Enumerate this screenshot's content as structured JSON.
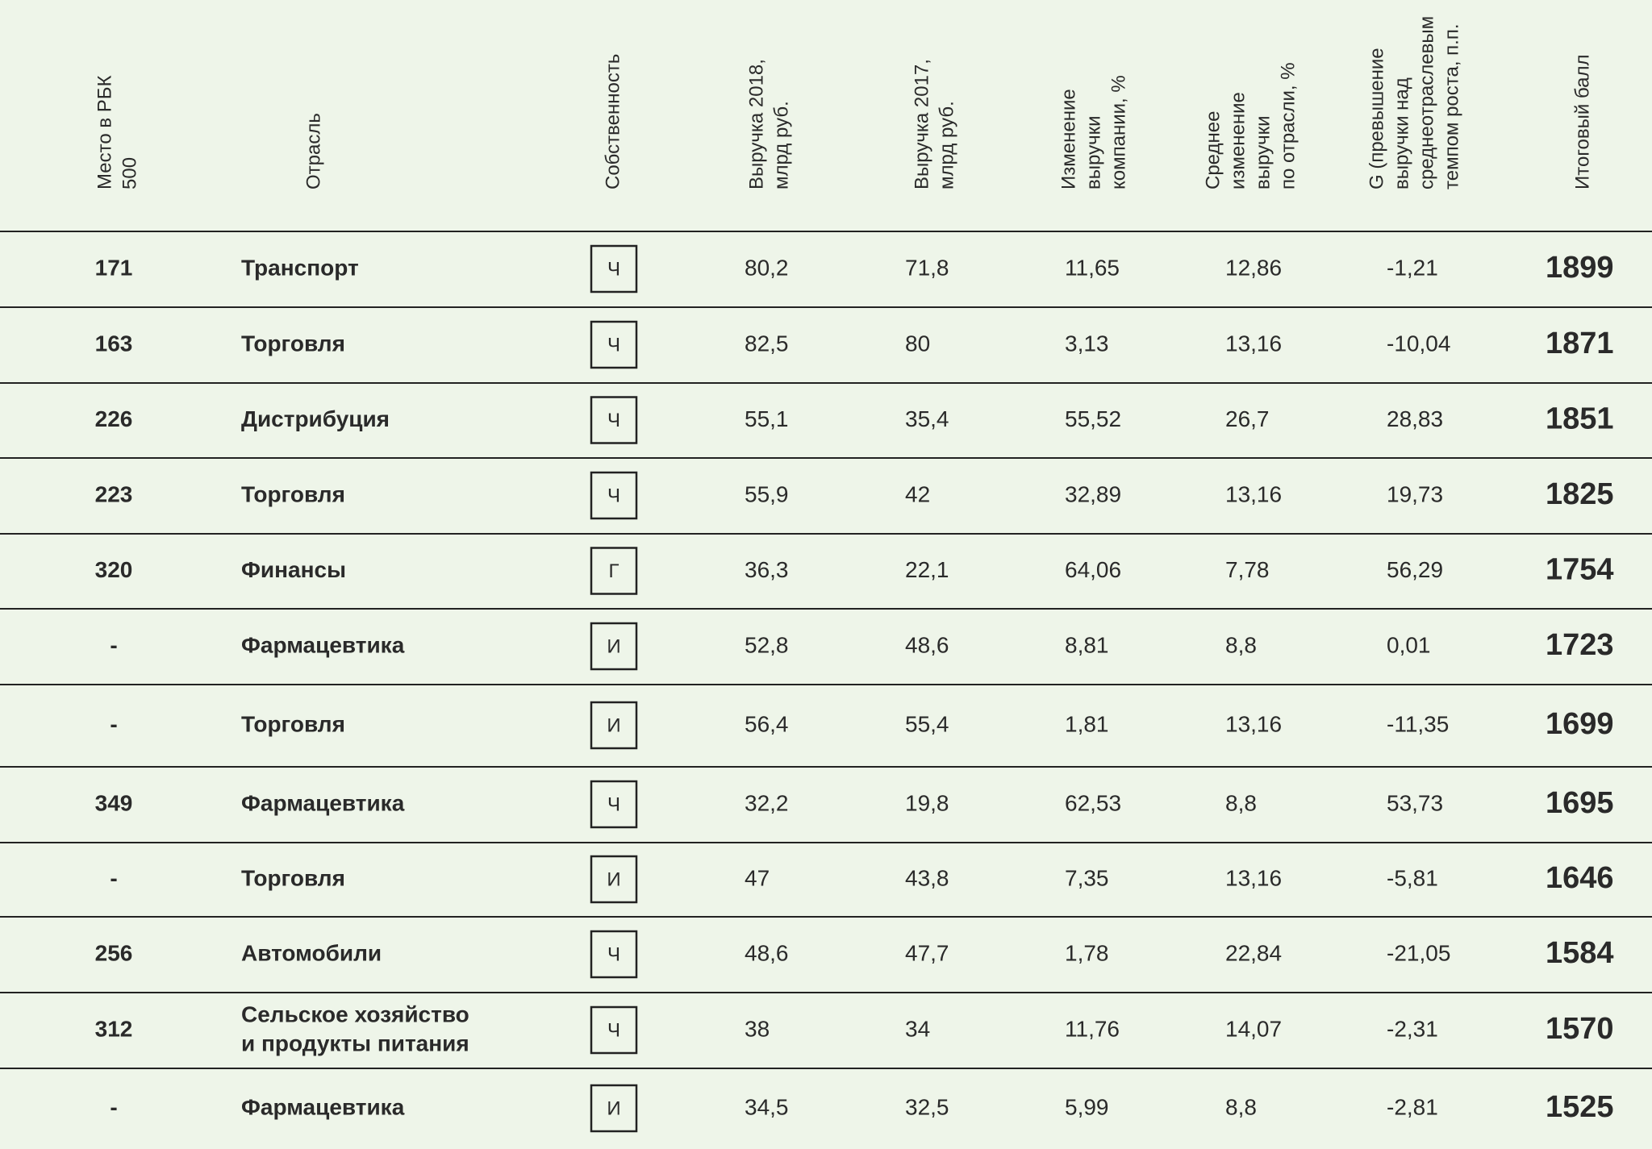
{
  "table": {
    "headers": [
      [
        "Место в РБК",
        "500"
      ],
      [
        "Отрасль"
      ],
      [
        "Собственность"
      ],
      [
        "Выручка 2018,",
        "млрд руб."
      ],
      [
        "Выручка 2017,",
        "млрд руб."
      ],
      [
        "Изменение",
        "выручки",
        "компании, %"
      ],
      [
        "Среднее",
        "изменение",
        "выручки",
        "по отрасли, %"
      ],
      [
        "G (превышение",
        "выручки над",
        "среднеотраслевым",
        "темпом роста, п.п."
      ],
      [
        "Итоговый балл"
      ]
    ],
    "rows": [
      [
        "171",
        "Транспорт",
        "Ч",
        "80,2",
        "71,8",
        "11,65",
        "12,86",
        "-1,21",
        "1899"
      ],
      [
        "163",
        "Торговля",
        "Ч",
        "82,5",
        "80",
        "3,13",
        "13,16",
        "-10,04",
        "1871"
      ],
      [
        "226",
        "Дистрибуция",
        "Ч",
        "55,1",
        "35,4",
        "55,52",
        "26,7",
        "28,83",
        "1851"
      ],
      [
        "223",
        "Торговля",
        "Ч",
        "55,9",
        "42",
        "32,89",
        "13,16",
        "19,73",
        "1825"
      ],
      [
        "320",
        "Финансы",
        "Г",
        "36,3",
        "22,1",
        "64,06",
        "7,78",
        "56,29",
        "1754"
      ],
      [
        "-",
        "Фармацевтика",
        "И",
        "52,8",
        "48,6",
        "8,81",
        "8,8",
        "0,01",
        "1723"
      ],
      [
        "-",
        "Торговля",
        "И",
        "56,4",
        "55,4",
        "1,81",
        "13,16",
        "-11,35",
        "1699"
      ],
      [
        "349",
        "Фармацевтика",
        "Ч",
        "32,2",
        "19,8",
        "62,53",
        "8,8",
        "53,73",
        "1695"
      ],
      [
        "-",
        "Торговля",
        "И",
        "47",
        "43,8",
        "7,35",
        "13,16",
        "-5,81",
        "1646"
      ],
      [
        "256",
        "Автомобили",
        "Ч",
        "48,6",
        "47,7",
        "1,78",
        "22,84",
        "-21,05",
        "1584"
      ],
      [
        "312",
        [
          "Сельское хозяйство",
          "и продукты питания"
        ],
        "Ч",
        "38",
        "34",
        "11,76",
        "14,07",
        "-2,31",
        "1570"
      ],
      [
        "-",
        "Фармацевтика",
        "И",
        "34,5",
        "32,5",
        "5,99",
        "8,8",
        "-2,81",
        "1525"
      ]
    ]
  }
}
